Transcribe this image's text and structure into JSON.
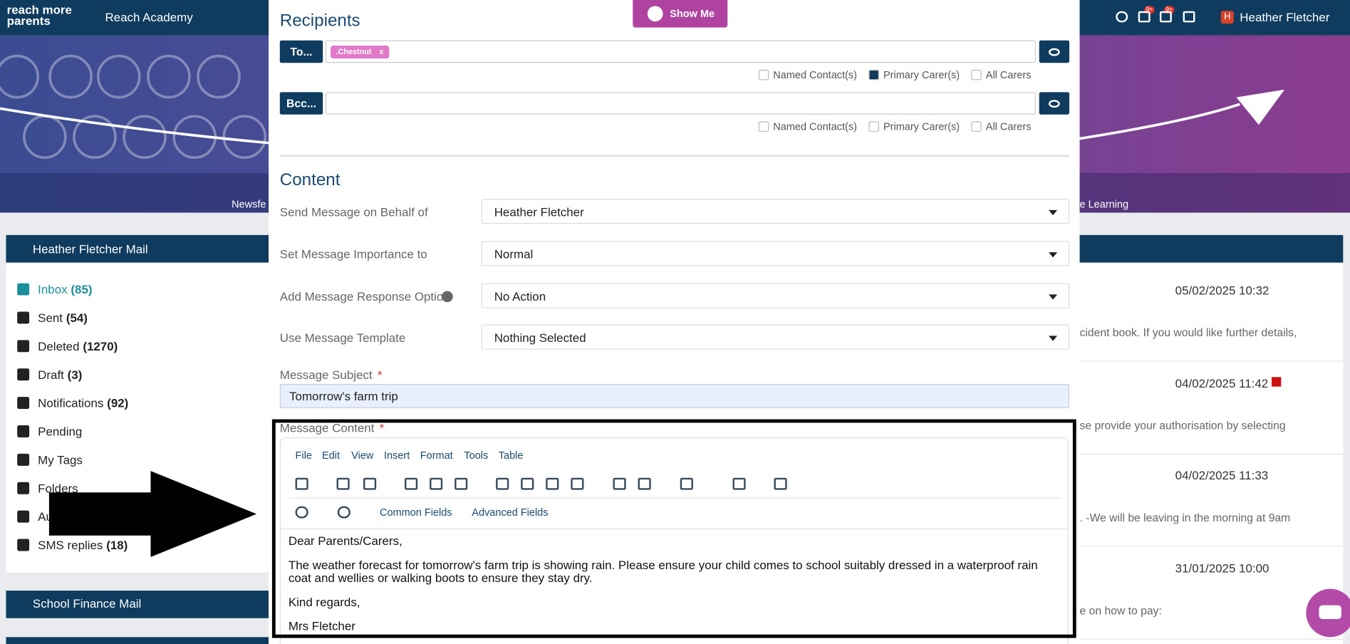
{
  "header": {
    "logo": "reach more parents",
    "school": "Reach Academy",
    "user": "Heather Fletcher",
    "avatar": "H",
    "badges": [
      "9+",
      "9+"
    ]
  },
  "nav": [
    "Newsfe",
    "e Learning"
  ],
  "mailbox": {
    "title": "Heather Fletcher Mail",
    "folders": [
      {
        "label": "Inbox",
        "count": "(85)"
      },
      {
        "label": "Sent",
        "count": "(54)"
      },
      {
        "label": "Deleted",
        "count": "(1270)"
      },
      {
        "label": "Draft",
        "count": "(3)"
      },
      {
        "label": "Notifications",
        "count": "(92)"
      },
      {
        "label": "Pending"
      },
      {
        "label": "My Tags"
      },
      {
        "label": "Folders"
      },
      {
        "label": "Au"
      },
      {
        "label": "SMS replies",
        "count": "(18)"
      }
    ],
    "second_title": "School Finance Mail"
  },
  "messages": [
    {
      "date": "05/02/2025 10:32",
      "snippet": "cident book. If you would like further details,"
    },
    {
      "date": "04/02/2025 11:42",
      "snippet": "se provide your authorisation by selecting",
      "flagged": true
    },
    {
      "date": "04/02/2025 11:33",
      "snippet": ". -We will be leaving in the morning at 9am"
    },
    {
      "date": "31/01/2025 10:00",
      "snippet": "e on how to pay:"
    }
  ],
  "modal": {
    "show_me": "Show Me",
    "recipients": {
      "title": "Recipients",
      "rows": [
        {
          "button": "To...",
          "chips": [
            ".Chestnut"
          ],
          "options": [
            {
              "label": "Named Contact(s)",
              "checked": false
            },
            {
              "label": "Primary Carer(s)",
              "checked": true
            },
            {
              "label": "All Carers",
              "checked": false
            }
          ]
        },
        {
          "button": "Bcc...",
          "chips": [],
          "options": [
            {
              "label": "Named Contact(s)",
              "checked": false
            },
            {
              "label": "Primary Carer(s)",
              "checked": false
            },
            {
              "label": "All Carers",
              "checked": false
            }
          ]
        }
      ],
      "chip_remove": "x"
    },
    "content": {
      "title": "Content",
      "fields": [
        {
          "label": "Send Message on Behalf of",
          "value": "Heather Fletcher"
        },
        {
          "label": "Set Message Importance to",
          "value": "Normal"
        },
        {
          "label": "Add Message Response Option",
          "value": "No Action",
          "help": true
        },
        {
          "label": "Use Message Template",
          "value": "Nothing Selected"
        }
      ],
      "required": "*",
      "subject_label": "Message Subject",
      "subject": "Tomorrow's farm trip",
      "message_label": "Message Content",
      "menu": [
        "File",
        "Edit",
        "View",
        "Insert",
        "Format",
        "Tools",
        "Table"
      ],
      "dropdowns": [
        "Common Fields",
        "Advanced Fields"
      ],
      "body": [
        "Dear Parents/Carers,",
        "The weather forecast for tomorrow's farm trip is showing rain. Please ensure your child comes to school suitably dressed in a waterproof rain coat and wellies or walking boots to ensure they stay dry.",
        "Kind regards,",
        "Mrs Fletcher"
      ]
    }
  }
}
